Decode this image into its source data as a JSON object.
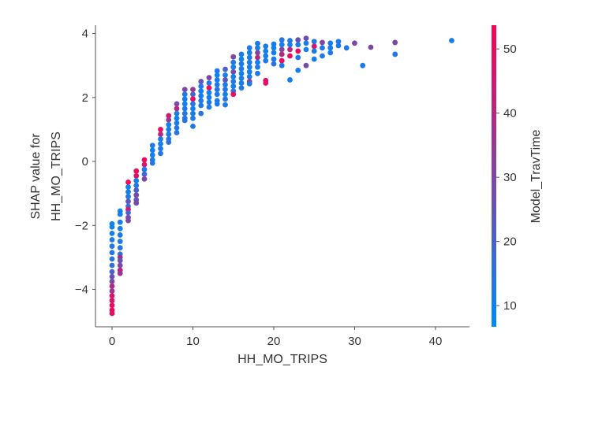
{
  "chart_data": {
    "type": "scatter",
    "title": "",
    "xlabel": "HH_MO_TRIPS",
    "ylabel_lines": [
      "SHAP value for",
      "HH_MO_TRIPS"
    ],
    "xlim": [
      -2.05,
      44.2
    ],
    "ylim": [
      -5.17,
      4.26
    ],
    "xticks": [
      0,
      10,
      20,
      30,
      40
    ],
    "yticks": [
      -4,
      -2,
      0,
      2,
      4
    ],
    "ytick_labels": [
      "−4",
      "−2",
      "0",
      "2",
      "4"
    ],
    "grid": false,
    "colorbar": {
      "label": "Model_TravTime",
      "range": [
        6.7,
        53.7
      ],
      "ticks": [
        10,
        20,
        30,
        40,
        50
      ],
      "low_color": "#008afb",
      "high_color": "#ff0052"
    },
    "columns": [
      {
        "x": 0,
        "points": [
          [
            -1.95,
            9
          ],
          [
            -2.05,
            9
          ],
          [
            -2.25,
            10
          ],
          [
            -2.45,
            11
          ],
          [
            -2.65,
            12
          ],
          [
            -2.85,
            12
          ],
          [
            -3.05,
            14
          ],
          [
            -3.25,
            15
          ],
          [
            -3.45,
            20
          ],
          [
            -3.6,
            25
          ],
          [
            -3.75,
            30
          ],
          [
            -3.9,
            40
          ],
          [
            -4.05,
            35
          ],
          [
            -4.2,
            48
          ],
          [
            -4.35,
            45
          ],
          [
            -4.5,
            50
          ],
          [
            -4.65,
            52
          ],
          [
            -4.75,
            48
          ]
        ]
      },
      {
        "x": 1,
        "points": [
          [
            -1.55,
            9
          ],
          [
            -1.65,
            10
          ],
          [
            -1.9,
            10
          ],
          [
            -2.1,
            11
          ],
          [
            -2.3,
            12
          ],
          [
            -2.5,
            12
          ],
          [
            -2.7,
            14
          ],
          [
            -2.9,
            15
          ],
          [
            -3.0,
            38
          ],
          [
            -3.1,
            25
          ],
          [
            -3.25,
            30
          ],
          [
            -3.4,
            40
          ],
          [
            -3.5,
            35
          ]
        ]
      },
      {
        "x": 2,
        "points": [
          [
            -0.65,
            52
          ],
          [
            -0.8,
            10
          ],
          [
            -0.95,
            11
          ],
          [
            -1.1,
            12
          ],
          [
            -1.25,
            25
          ],
          [
            -1.4,
            14
          ],
          [
            -1.5,
            48
          ],
          [
            -1.6,
            20
          ],
          [
            -1.75,
            28
          ],
          [
            -1.85,
            30
          ]
        ]
      },
      {
        "x": 3,
        "points": [
          [
            -0.3,
            50
          ],
          [
            -0.45,
            48
          ],
          [
            -0.6,
            10
          ],
          [
            -0.75,
            12
          ],
          [
            -0.9,
            20
          ],
          [
            -1.05,
            28
          ],
          [
            -1.2,
            25
          ],
          [
            -1.3,
            30
          ]
        ]
      },
      {
        "x": 4,
        "points": [
          [
            0.05,
            50
          ],
          [
            -0.1,
            45
          ],
          [
            -0.25,
            12
          ],
          [
            -0.4,
            20
          ],
          [
            -0.55,
            30
          ]
        ]
      },
      {
        "x": 5,
        "points": [
          [
            0.5,
            12
          ],
          [
            0.35,
            10
          ],
          [
            0.2,
            11
          ],
          [
            0.05,
            12
          ],
          [
            -0.05,
            14
          ]
        ]
      },
      {
        "x": 6,
        "points": [
          [
            1.0,
            50
          ],
          [
            0.85,
            40
          ],
          [
            0.7,
            12
          ],
          [
            0.55,
            10
          ],
          [
            0.4,
            12
          ],
          [
            0.25,
            14
          ]
        ]
      },
      {
        "x": 7,
        "points": [
          [
            1.43,
            45
          ],
          [
            1.3,
            35
          ],
          [
            1.15,
            10
          ],
          [
            1.0,
            11
          ],
          [
            0.85,
            12
          ],
          [
            0.7,
            13
          ],
          [
            0.6,
            15
          ]
        ]
      },
      {
        "x": 8,
        "points": [
          [
            1.8,
            30
          ],
          [
            1.65,
            40
          ],
          [
            1.5,
            12
          ],
          [
            1.35,
            10
          ],
          [
            1.2,
            11
          ],
          [
            1.05,
            13
          ],
          [
            0.9,
            14
          ]
        ]
      },
      {
        "x": 9,
        "points": [
          [
            2.25,
            30
          ],
          [
            2.1,
            12
          ],
          [
            1.95,
            11
          ],
          [
            1.8,
            10
          ],
          [
            1.65,
            12
          ],
          [
            1.5,
            13
          ],
          [
            1.35,
            15
          ],
          [
            1.28,
            14
          ]
        ]
      },
      {
        "x": 10,
        "points": [
          [
            2.25,
            35
          ],
          [
            2.1,
            20
          ],
          [
            1.95,
            50
          ],
          [
            1.8,
            12
          ],
          [
            1.65,
            10
          ],
          [
            1.5,
            11
          ],
          [
            1.35,
            12
          ],
          [
            1.1,
            12
          ]
        ]
      },
      {
        "x": 11,
        "points": [
          [
            2.5,
            25
          ],
          [
            2.35,
            12
          ],
          [
            2.2,
            10
          ],
          [
            2.05,
            11
          ],
          [
            1.9,
            12
          ],
          [
            1.75,
            13
          ],
          [
            1.5,
            14
          ]
        ]
      },
      {
        "x": 12,
        "points": [
          [
            2.62,
            30
          ],
          [
            2.45,
            12
          ],
          [
            2.3,
            50
          ],
          [
            2.15,
            10
          ],
          [
            2.0,
            11
          ],
          [
            1.85,
            12
          ],
          [
            1.7,
            13
          ]
        ]
      },
      {
        "x": 13,
        "points": [
          [
            2.83,
            12
          ],
          [
            2.7,
            10
          ],
          [
            2.55,
            11
          ],
          [
            2.4,
            12
          ],
          [
            2.25,
            14
          ],
          [
            2.1,
            12
          ],
          [
            1.9,
            13
          ],
          [
            1.8,
            12
          ]
        ]
      },
      {
        "x": 14,
        "points": [
          [
            2.88,
            20
          ],
          [
            2.7,
            10
          ],
          [
            2.55,
            25
          ],
          [
            2.4,
            11
          ],
          [
            2.25,
            12
          ],
          [
            2.1,
            10
          ],
          [
            1.95,
            13
          ],
          [
            1.77,
            11
          ]
        ]
      },
      {
        "x": 15,
        "points": [
          [
            3.27,
            30
          ],
          [
            3.1,
            12
          ],
          [
            2.95,
            10
          ],
          [
            2.8,
            28
          ],
          [
            2.65,
            11
          ],
          [
            2.5,
            12
          ],
          [
            2.35,
            10
          ],
          [
            2.2,
            13
          ],
          [
            2.1,
            50
          ]
        ]
      },
      {
        "x": 16,
        "points": [
          [
            3.35,
            12
          ],
          [
            3.2,
            10
          ],
          [
            3.05,
            11
          ],
          [
            2.9,
            12
          ],
          [
            2.75,
            10
          ],
          [
            2.6,
            12
          ],
          [
            2.45,
            11
          ],
          [
            2.3,
            13
          ]
        ]
      },
      {
        "x": 17,
        "points": [
          [
            3.55,
            12
          ],
          [
            3.4,
            10
          ],
          [
            3.25,
            11
          ],
          [
            3.1,
            12
          ],
          [
            2.95,
            11
          ],
          [
            2.8,
            10
          ],
          [
            2.65,
            12
          ],
          [
            2.5,
            35
          ],
          [
            2.43,
            12
          ]
        ]
      },
      {
        "x": 18,
        "points": [
          [
            3.69,
            12
          ],
          [
            3.55,
            11
          ],
          [
            3.4,
            30
          ],
          [
            3.25,
            40
          ],
          [
            3.1,
            10
          ],
          [
            2.95,
            12
          ],
          [
            2.75,
            12
          ]
        ]
      },
      {
        "x": 19,
        "points": [
          [
            3.6,
            12
          ],
          [
            3.45,
            10
          ],
          [
            3.3,
            11
          ],
          [
            3.15,
            12
          ],
          [
            2.53,
            50
          ],
          [
            2.45,
            48
          ]
        ]
      },
      {
        "x": 20,
        "points": [
          [
            3.67,
            12
          ],
          [
            3.55,
            10
          ],
          [
            3.4,
            11
          ],
          [
            3.2,
            12
          ],
          [
            3.05,
            15
          ]
        ]
      },
      {
        "x": 21,
        "points": [
          [
            3.8,
            12
          ],
          [
            3.65,
            10
          ],
          [
            3.5,
            30
          ],
          [
            3.35,
            40
          ],
          [
            3.15,
            50
          ],
          [
            3.0,
            12
          ]
        ]
      },
      {
        "x": 22,
        "points": [
          [
            3.78,
            12
          ],
          [
            3.65,
            11
          ],
          [
            3.5,
            40
          ],
          [
            3.3,
            50
          ],
          [
            2.55,
            10
          ]
        ]
      },
      {
        "x": 23,
        "points": [
          [
            3.8,
            25
          ],
          [
            3.65,
            12
          ],
          [
            3.45,
            50
          ],
          [
            3.25,
            12
          ],
          [
            2.85,
            11
          ]
        ]
      },
      {
        "x": 24,
        "points": [
          [
            3.85,
            28
          ],
          [
            3.7,
            11
          ],
          [
            3.5,
            10
          ],
          [
            3.0,
            28
          ]
        ]
      },
      {
        "x": 25,
        "points": [
          [
            3.75,
            12
          ],
          [
            3.6,
            45
          ],
          [
            3.45,
            12
          ],
          [
            3.2,
            11
          ]
        ]
      },
      {
        "x": 26,
        "points": [
          [
            3.72,
            30
          ],
          [
            3.55,
            12
          ],
          [
            3.3,
            12
          ]
        ]
      },
      {
        "x": 27,
        "points": [
          [
            3.7,
            12
          ],
          [
            3.55,
            11
          ],
          [
            3.4,
            12
          ]
        ]
      },
      {
        "x": 28,
        "points": [
          [
            3.75,
            12
          ],
          [
            3.62,
            11
          ]
        ]
      },
      {
        "x": 29,
        "points": [
          [
            3.55,
            12
          ]
        ]
      },
      {
        "x": 30,
        "points": [
          [
            3.7,
            30
          ]
        ]
      },
      {
        "x": 31,
        "points": [
          [
            3.0,
            12
          ]
        ]
      },
      {
        "x": 32,
        "points": [
          [
            3.57,
            30
          ]
        ]
      },
      {
        "x": 35,
        "points": [
          [
            3.72,
            30
          ],
          [
            3.35,
            12
          ]
        ]
      },
      {
        "x": 42,
        "points": [
          [
            3.78,
            12
          ]
        ]
      }
    ]
  }
}
